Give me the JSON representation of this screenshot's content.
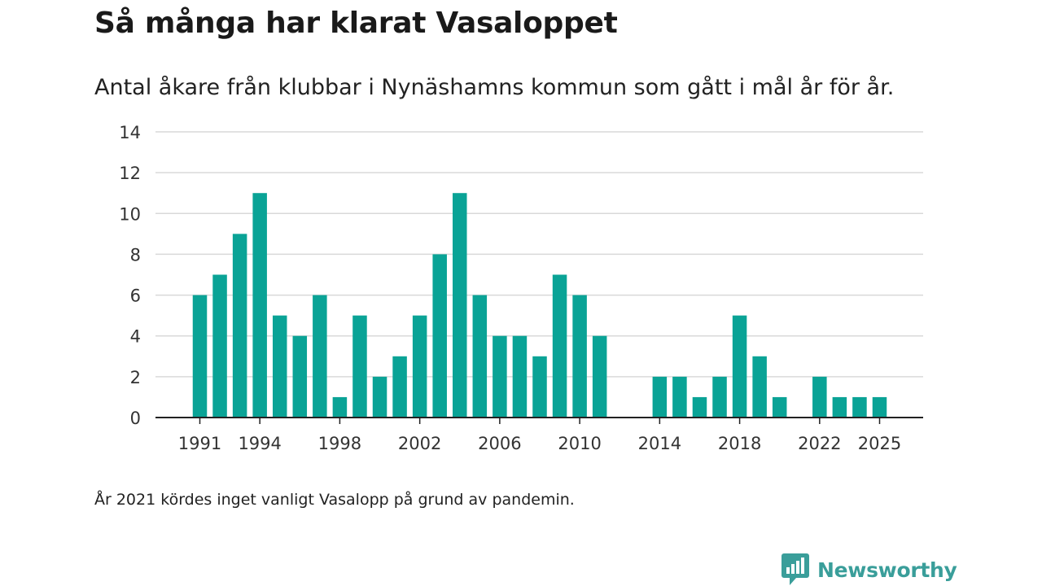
{
  "brand": {
    "name": "Newsworthy",
    "bar_color": "#0aa396",
    "logo_color": "#3a9e9a"
  },
  "chart_data": {
    "type": "bar",
    "title": "Så många har klarat Vasaloppet",
    "subtitle": "Antal åkare från klubbar i Nynäshamns kommun som gått i mål år för år.",
    "xlabel": "",
    "ylabel": "",
    "ylim": [
      0,
      14
    ],
    "yticks": [
      0,
      2,
      4,
      6,
      8,
      10,
      12,
      14
    ],
    "xlim": [
      1991,
      2025
    ],
    "xticks": [
      1991,
      1994,
      1998,
      2002,
      2006,
      2010,
      2014,
      2018,
      2022,
      2025
    ],
    "years": [
      1991,
      1992,
      1993,
      1994,
      1995,
      1996,
      1997,
      1998,
      1999,
      2000,
      2001,
      2002,
      2003,
      2004,
      2005,
      2006,
      2007,
      2008,
      2009,
      2010,
      2011,
      2012,
      2013,
      2014,
      2015,
      2016,
      2017,
      2018,
      2019,
      2020,
      2021,
      2022,
      2023,
      2024,
      2025
    ],
    "values": [
      6,
      7,
      9,
      11,
      5,
      4,
      6,
      1,
      5,
      2,
      3,
      5,
      8,
      11,
      6,
      4,
      4,
      3,
      7,
      6,
      4,
      0,
      0,
      2,
      2,
      1,
      2,
      5,
      3,
      1,
      0,
      2,
      1,
      1,
      1
    ],
    "grid": true,
    "legend": "none"
  },
  "note": "År 2021 kördes inget vanligt Vasalopp på grund av pandemin."
}
